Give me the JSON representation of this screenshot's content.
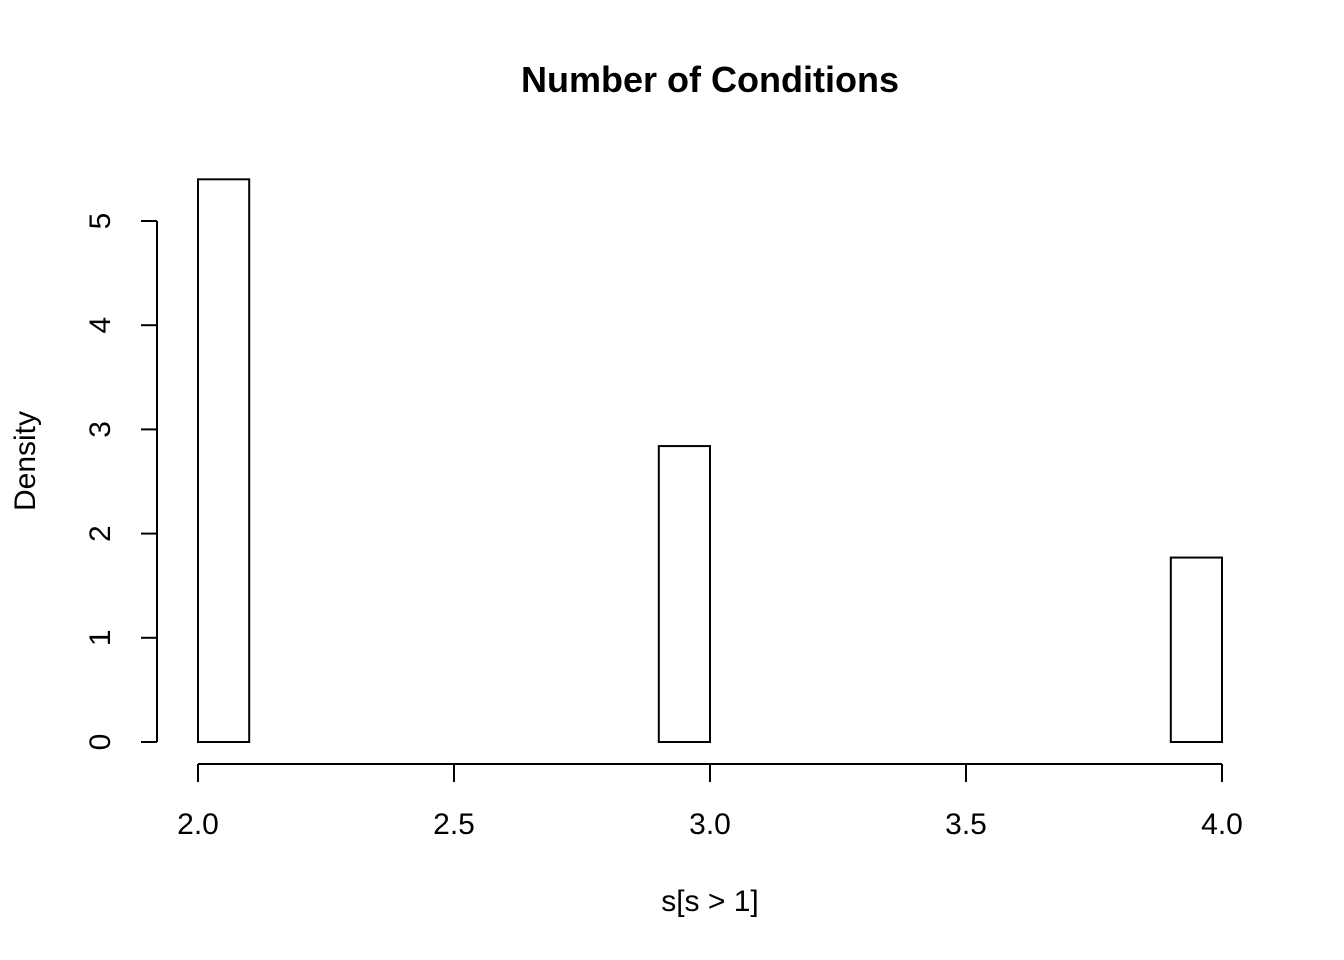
{
  "chart_data": {
    "type": "bar",
    "title": "Number of Conditions",
    "xlabel": "s[s > 1]",
    "ylabel": "Density",
    "bin_width": 0.1,
    "bins": [
      {
        "start": 2.0,
        "end": 2.1,
        "density": 5.4
      },
      {
        "start": 2.1,
        "end": 2.2,
        "density": 0
      },
      {
        "start": 2.2,
        "end": 2.3,
        "density": 0
      },
      {
        "start": 2.3,
        "end": 2.4,
        "density": 0
      },
      {
        "start": 2.4,
        "end": 2.5,
        "density": 0
      },
      {
        "start": 2.5,
        "end": 2.6,
        "density": 0
      },
      {
        "start": 2.6,
        "end": 2.7,
        "density": 0
      },
      {
        "start": 2.7,
        "end": 2.8,
        "density": 0
      },
      {
        "start": 2.8,
        "end": 2.9,
        "density": 0
      },
      {
        "start": 2.9,
        "end": 3.0,
        "density": 2.84
      },
      {
        "start": 3.0,
        "end": 3.1,
        "density": 0
      },
      {
        "start": 3.1,
        "end": 3.2,
        "density": 0
      },
      {
        "start": 3.2,
        "end": 3.3,
        "density": 0
      },
      {
        "start": 3.3,
        "end": 3.4,
        "density": 0
      },
      {
        "start": 3.4,
        "end": 3.5,
        "density": 0
      },
      {
        "start": 3.5,
        "end": 3.6,
        "density": 0
      },
      {
        "start": 3.6,
        "end": 3.7,
        "density": 0
      },
      {
        "start": 3.7,
        "end": 3.8,
        "density": 0
      },
      {
        "start": 3.8,
        "end": 3.9,
        "density": 0
      },
      {
        "start": 3.9,
        "end": 4.0,
        "density": 1.77
      }
    ],
    "xlim": [
      2.0,
      4.0
    ],
    "ylim": [
      0,
      5.4
    ],
    "x_ticks": [
      2.0,
      2.5,
      3.0,
      3.5,
      4.0
    ],
    "x_tick_labels": [
      "2.0",
      "2.5",
      "3.0",
      "3.5",
      "4.0"
    ],
    "y_ticks": [
      0,
      1,
      2,
      3,
      4,
      5
    ],
    "y_tick_labels": [
      "0",
      "1",
      "2",
      "3",
      "4",
      "5"
    ],
    "grid": false,
    "bar_fill": "#ffffff",
    "bar_stroke": "#000000"
  }
}
